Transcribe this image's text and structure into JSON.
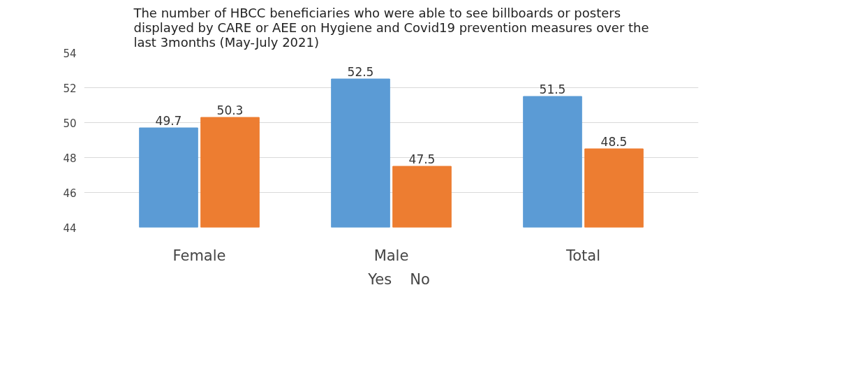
{
  "chart_data": {
    "type": "bar",
    "title": "The number of HBCC beneficiaries who were able to see billboards or posters displayed by CARE or AEE on Hygiene and Covid19 prevention measures over the last 3months (May-July 2021)",
    "categories": [
      "Female",
      "Male",
      "Total"
    ],
    "series": [
      {
        "name": "Yes",
        "color": "#5b9bd5",
        "values": [
          49.7,
          52.5,
          51.5
        ]
      },
      {
        "name": "No",
        "color": "#ed7d31",
        "values": [
          50.3,
          47.5,
          48.5
        ]
      }
    ],
    "ylim": [
      44,
      54
    ],
    "yticks": [
      44,
      46,
      48,
      50,
      52,
      54
    ],
    "grid": "y",
    "legend": "bottom",
    "data_labels": true
  }
}
